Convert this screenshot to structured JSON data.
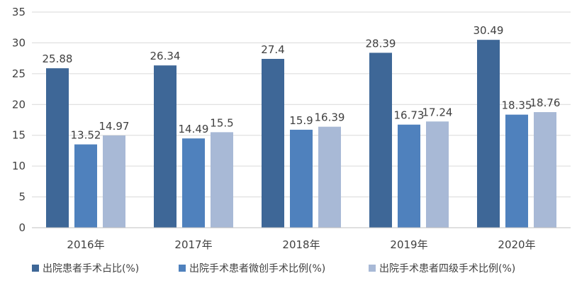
{
  "chart_data": {
    "type": "bar",
    "categories": [
      "2016年",
      "2017年",
      "2018年",
      "2019年",
      "2020年"
    ],
    "series": [
      {
        "name": "出院患者手术占比(%)",
        "color": "#3e6797",
        "values": [
          25.88,
          26.34,
          27.4,
          28.39,
          30.49
        ],
        "labels": [
          "25.88",
          "26.34",
          "27.4",
          "28.39",
          "30.49"
        ]
      },
      {
        "name": "出院手术患者微创手术比例(%)",
        "color": "#4f81bd",
        "values": [
          13.52,
          14.49,
          15.9,
          16.73,
          18.35
        ],
        "labels": [
          "13.52",
          "14.49",
          "15.9",
          "16.73",
          "18.35"
        ]
      },
      {
        "name": "出院手术患者四级手术比例(%)",
        "color": "#a8b9d6",
        "values": [
          14.97,
          15.5,
          16.39,
          17.24,
          18.76
        ],
        "labels": [
          "14.97",
          "15.5",
          "16.39",
          "17.24",
          "18.76"
        ]
      }
    ],
    "yticks": [
      0,
      5,
      10,
      15,
      20,
      25,
      30,
      35
    ],
    "ytick_labels": [
      "0",
      "5",
      "10",
      "15",
      "20",
      "25",
      "30",
      "35"
    ],
    "ylim": [
      0,
      35
    ],
    "grid": true,
    "legend_position": "bottom",
    "title": "",
    "xlabel": "",
    "ylabel": ""
  }
}
